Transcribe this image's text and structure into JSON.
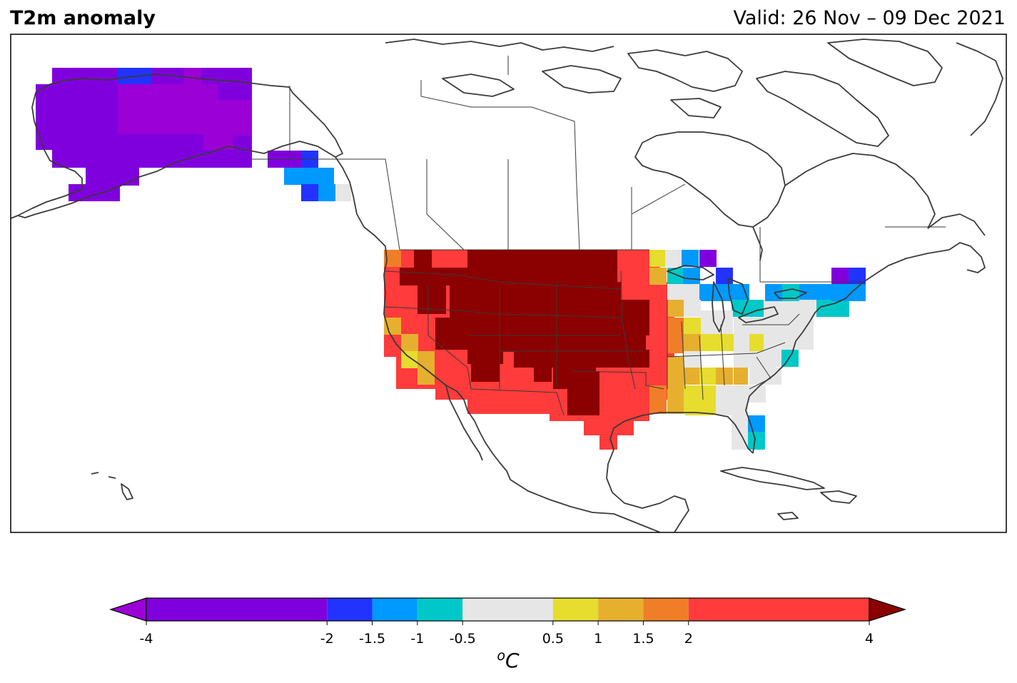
{
  "title": "T2m anomaly",
  "valid_label": "Valid: 26 Nov – 09 Dec 2021",
  "colorbar": {
    "unit": "°C",
    "unit_super": "o",
    "unit_main": "C",
    "min": -4,
    "max": 4,
    "extend": "both",
    "boundaries": [
      -4,
      -2,
      -1.5,
      -1,
      -0.5,
      0.5,
      1,
      1.5,
      2,
      4
    ],
    "tick_labels": [
      "-4",
      "-2",
      "-1.5",
      "-1",
      "-0.5",
      "0.5",
      "1",
      "1.5",
      "2",
      "4"
    ],
    "colors": [
      "#8000dd",
      "#2233ff",
      "#0099ff",
      "#00c8c8",
      "#e6e6e6",
      "#e6dd2e",
      "#e6b02e",
      "#f07e28",
      "#ff3b3b"
    ],
    "under_color": "#9b00d6",
    "over_color": "#8b0000"
  },
  "colors": {
    "neg_extreme": "#9b00d6",
    "neg_strong": "#8000dd",
    "blue": "#2233ff",
    "light_blue": "#0099ff",
    "cyan": "#00c8c8",
    "neutral": "#e6e6e6",
    "yellow": "#e6dd2e",
    "gold": "#e6b02e",
    "orange": "#f07e28",
    "red": "#ff3b3b",
    "dark_red": "#8b0000",
    "coastline": "#3a3a3a"
  },
  "map_regions": [
    {
      "name": "Alaska",
      "anomaly": "< -2 °C",
      "category": "neg_strong"
    },
    {
      "name": "Northern Plains / Rockies",
      "anomaly": "> 4 °C",
      "category": "dark_red"
    },
    {
      "name": "Western & Southern US",
      "anomaly": "2 to 4 °C",
      "category": "red"
    },
    {
      "name": "Southeast US",
      "anomaly": "-0.5 to 1 °C",
      "category": "neutral"
    },
    {
      "name": "Great Lakes / Northeast",
      "anomaly": "-2 to -0.5 °C",
      "category": "light_blue"
    }
  ]
}
